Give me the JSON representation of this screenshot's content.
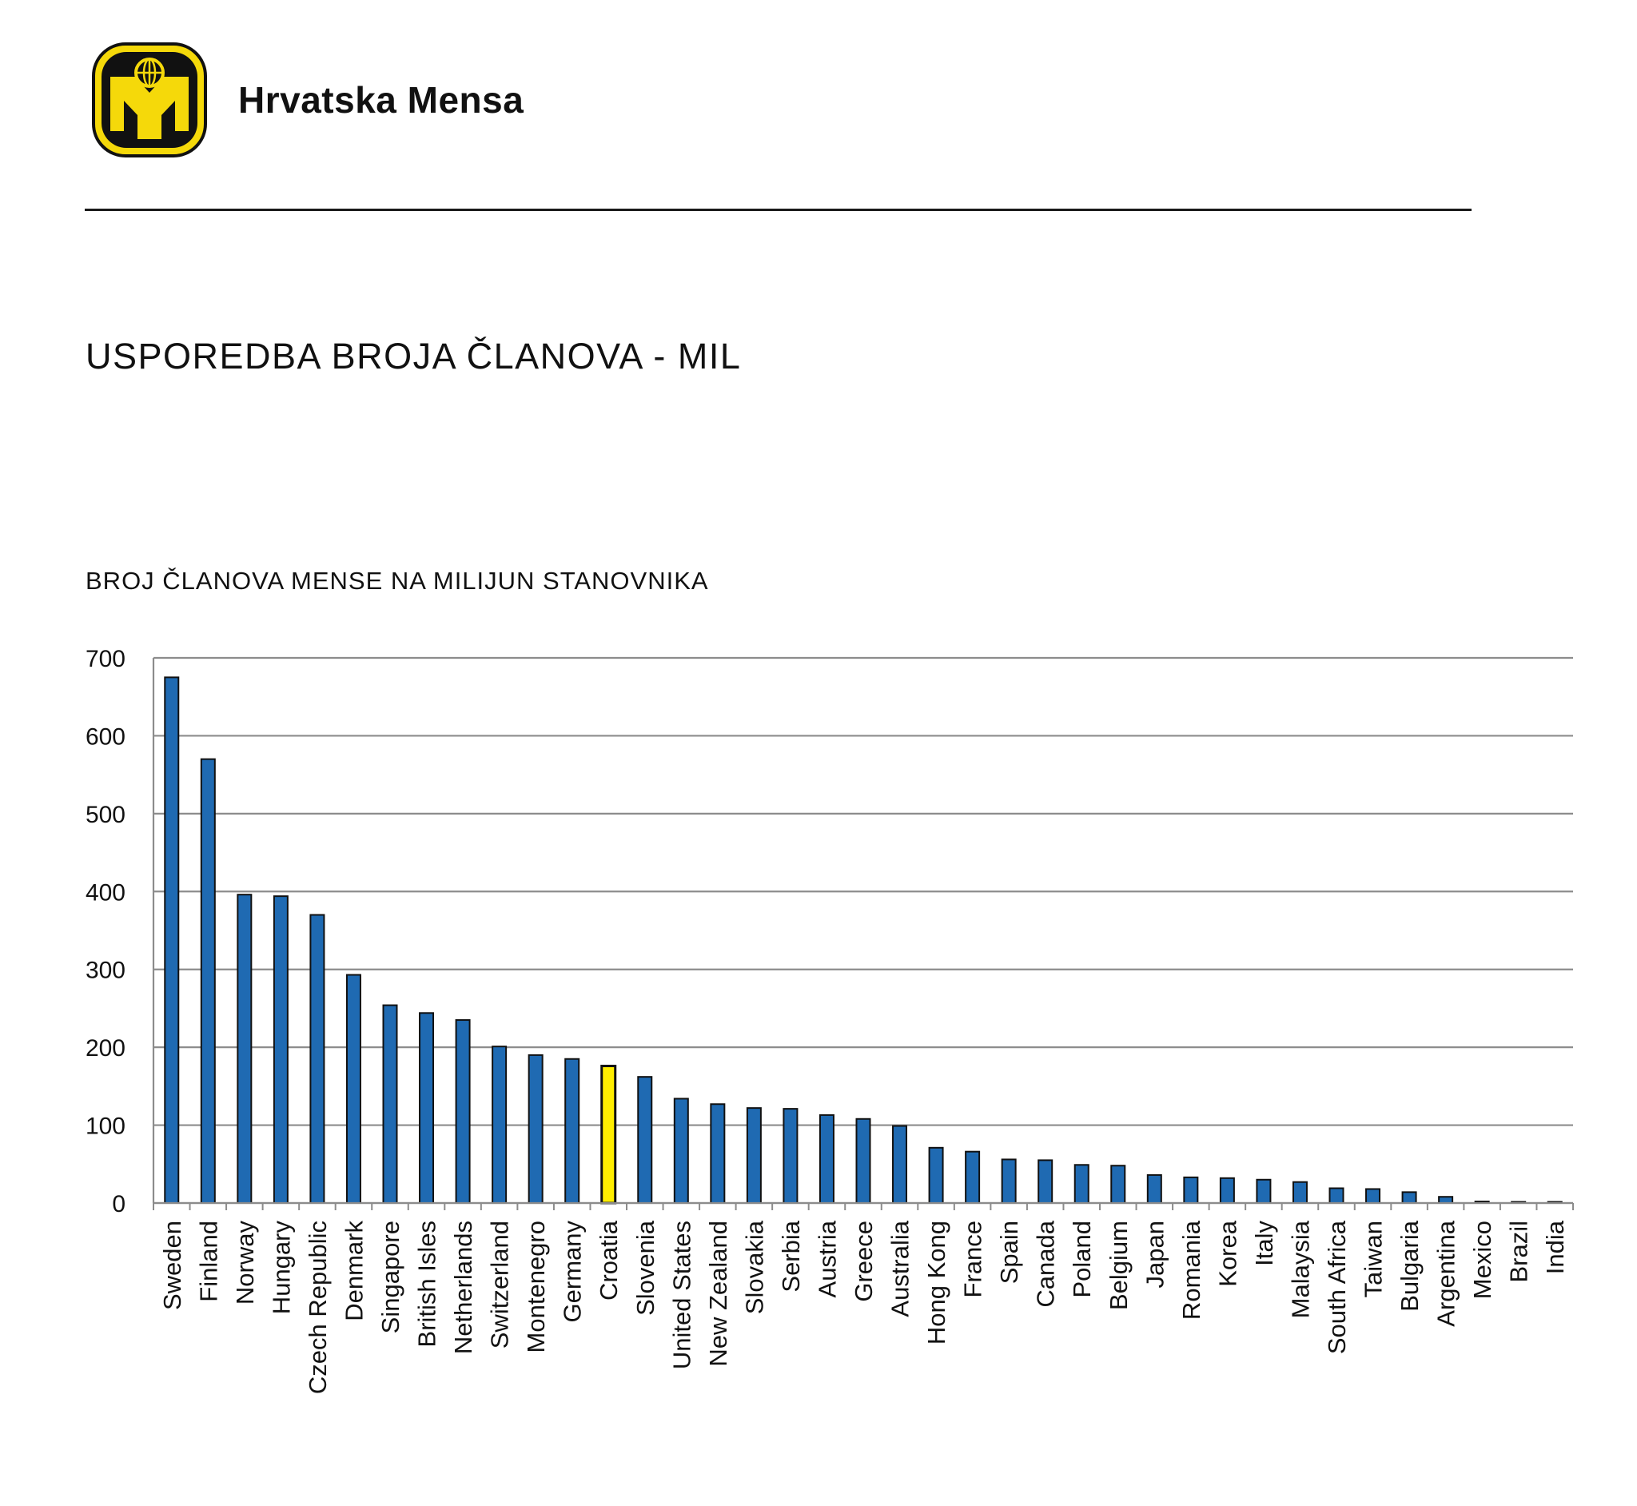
{
  "header": {
    "brand_name": "Hrvatska Mensa",
    "logo_icon": "mensa-logo-icon"
  },
  "page": {
    "title": "USPOREDBA BROJA ČLANOVA - MIL"
  },
  "colors": {
    "bar": "#1f6ab2",
    "highlight_bar": "#ffee00",
    "bar_outline": "#111111",
    "gridline": "#8c8c8c",
    "logo_yellow": "#f5d90a",
    "logo_black": "#111111"
  },
  "chart_data": {
    "type": "bar",
    "title": "BROJ ČLANOVA MENSE NA MILIJUN STANOVNIKA",
    "xlabel": "",
    "ylabel": "",
    "ylim": [
      0,
      700
    ],
    "yticks": [
      0,
      100,
      200,
      300,
      400,
      500,
      600,
      700
    ],
    "grid": true,
    "highlight": "Croatia",
    "categories": [
      "Sweden",
      "Finland",
      "Norway",
      "Hungary",
      "Czech Republic",
      "Denmark",
      "Singapore",
      "British Isles",
      "Netherlands",
      "Switzerland",
      "Montenegro",
      "Germany",
      "Croatia",
      "Slovenia",
      "United States",
      "New Zealand",
      "Slovakia",
      "Serbia",
      "Austria",
      "Greece",
      "Australia",
      "Hong Kong",
      "France",
      "Spain",
      "Canada",
      "Poland",
      "Belgium",
      "Japan",
      "Romania",
      "Korea",
      "Italy",
      "Malaysia",
      "South Africa",
      "Taiwan",
      "Bulgaria",
      "Argentina",
      "Mexico",
      "Brazil",
      "India"
    ],
    "values": [
      675,
      570,
      396,
      394,
      370,
      293,
      254,
      244,
      235,
      201,
      190,
      185,
      176,
      162,
      134,
      127,
      122,
      121,
      113,
      108,
      99,
      71,
      66,
      56,
      55,
      49,
      48,
      36,
      33,
      32,
      30,
      27,
      19,
      18,
      14,
      8,
      2,
      1.5,
      1.5
    ]
  }
}
